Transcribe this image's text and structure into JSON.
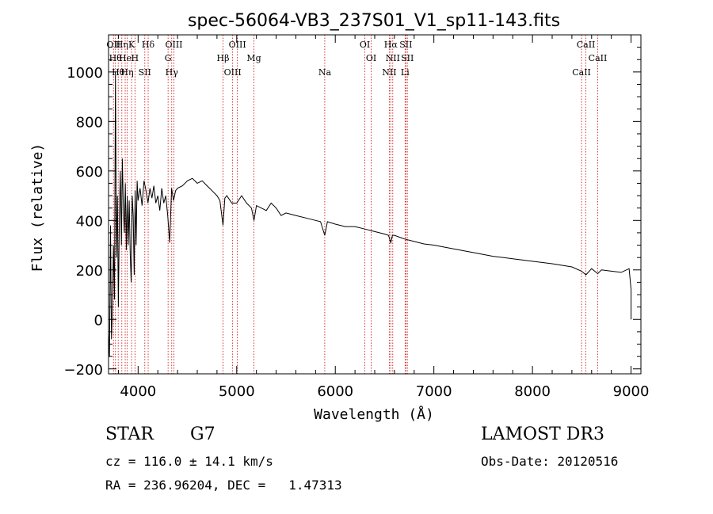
{
  "chart_data": {
    "type": "line",
    "title": "spec-56064-VB3_237S01_V1_sp11-143.fits",
    "xlabel": "Wavelength (Å)",
    "ylabel": "Flux (relative)",
    "xlim": [
      3700,
      9100
    ],
    "ylim": [
      -220,
      1150
    ],
    "x_ticks": [
      4000,
      5000,
      6000,
      7000,
      8000,
      9000
    ],
    "y_ticks": [
      -200,
      0,
      200,
      400,
      600,
      800,
      1000
    ],
    "grid": false,
    "series": [
      {
        "name": "flux",
        "x": [
          3700,
          3710,
          3720,
          3730,
          3740,
          3750,
          3760,
          3770,
          3780,
          3790,
          3800,
          3810,
          3820,
          3830,
          3840,
          3850,
          3860,
          3870,
          3880,
          3890,
          3900,
          3910,
          3920,
          3930,
          3940,
          3950,
          3960,
          3970,
          3980,
          3990,
          4000,
          4020,
          4040,
          4060,
          4080,
          4100,
          4120,
          4140,
          4160,
          4180,
          4200,
          4220,
          4240,
          4260,
          4280,
          4300,
          4320,
          4340,
          4360,
          4380,
          4400,
          4450,
          4500,
          4550,
          4600,
          4650,
          4700,
          4750,
          4800,
          4830,
          4861,
          4880,
          4900,
          4950,
          5000,
          5050,
          5100,
          5150,
          5175,
          5200,
          5250,
          5300,
          5350,
          5400,
          5450,
          5500,
          5600,
          5700,
          5800,
          5850,
          5893,
          5920,
          6000,
          6100,
          6200,
          6300,
          6400,
          6500,
          6540,
          6563,
          6580,
          6600,
          6700,
          6800,
          6900,
          7000,
          7200,
          7400,
          7600,
          7800,
          8000,
          8200,
          8400,
          8498,
          8542,
          8600,
          8662,
          8700,
          8800,
          8900,
          8980,
          9000,
          9000
        ],
        "y": [
          -50,
          -150,
          380,
          -80,
          50,
          300,
          80,
          1000,
          250,
          500,
          50,
          420,
          600,
          300,
          650,
          450,
          350,
          550,
          280,
          500,
          300,
          480,
          260,
          150,
          500,
          420,
          180,
          520,
          300,
          560,
          480,
          530,
          460,
          560,
          520,
          470,
          530,
          490,
          540,
          470,
          500,
          440,
          530,
          470,
          500,
          420,
          310,
          530,
          480,
          520,
          530,
          540,
          560,
          570,
          550,
          560,
          540,
          520,
          500,
          480,
          380,
          490,
          500,
          470,
          470,
          500,
          470,
          450,
          400,
          460,
          450,
          440,
          470,
          450,
          420,
          430,
          420,
          410,
          400,
          395,
          340,
          395,
          385,
          375,
          375,
          365,
          355,
          345,
          340,
          310,
          340,
          340,
          325,
          315,
          305,
          300,
          285,
          270,
          255,
          245,
          235,
          225,
          212,
          195,
          180,
          205,
          185,
          200,
          195,
          190,
          205,
          120,
          0
        ]
      }
    ],
    "line_labels": [
      {
        "lambda": 3750,
        "label": "OII"
      },
      {
        "lambda": 3770,
        "label": "Hθ"
      },
      {
        "lambda": 3798,
        "label": "Hθ"
      },
      {
        "lambda": 3835,
        "label": "Hη"
      },
      {
        "lambda": 3869,
        "label": "He"
      },
      {
        "lambda": 3889,
        "label": "Hη"
      },
      {
        "lambda": 3934,
        "label": "K"
      },
      {
        "lambda": 3968,
        "label": "H"
      },
      {
        "lambda": 4068,
        "label": "SII"
      },
      {
        "lambda": 4102,
        "label": "Hδ"
      },
      {
        "lambda": 4304,
        "label": "G"
      },
      {
        "lambda": 4341,
        "label": "Hγ"
      },
      {
        "lambda": 4363,
        "label": "OIII"
      },
      {
        "lambda": 4861,
        "label": "Hβ"
      },
      {
        "lambda": 4959,
        "label": "OIII"
      },
      {
        "lambda": 5007,
        "label": "OIII"
      },
      {
        "lambda": 5175,
        "label": "Mg"
      },
      {
        "lambda": 5893,
        "label": "Na"
      },
      {
        "lambda": 6300,
        "label": "OI"
      },
      {
        "lambda": 6364,
        "label": "OI"
      },
      {
        "lambda": 6548,
        "label": "NII"
      },
      {
        "lambda": 6563,
        "label": "Hα"
      },
      {
        "lambda": 6583,
        "label": "NII"
      },
      {
        "lambda": 6708,
        "label": "Li"
      },
      {
        "lambda": 6716,
        "label": "SII"
      },
      {
        "lambda": 6731,
        "label": "SII"
      },
      {
        "lambda": 8498,
        "label": "CaII"
      },
      {
        "lambda": 8542,
        "label": "CaII"
      },
      {
        "lambda": 8662,
        "label": "CaII"
      }
    ]
  },
  "info": {
    "class": "STAR",
    "subclass": "G7",
    "survey": "LAMOST DR3",
    "cz": "cz = 116.0 ± 14.1 km/s",
    "obs_date": "Obs-Date: 20120516",
    "coords": "RA = 236.96204, DEC =   1.47313"
  }
}
